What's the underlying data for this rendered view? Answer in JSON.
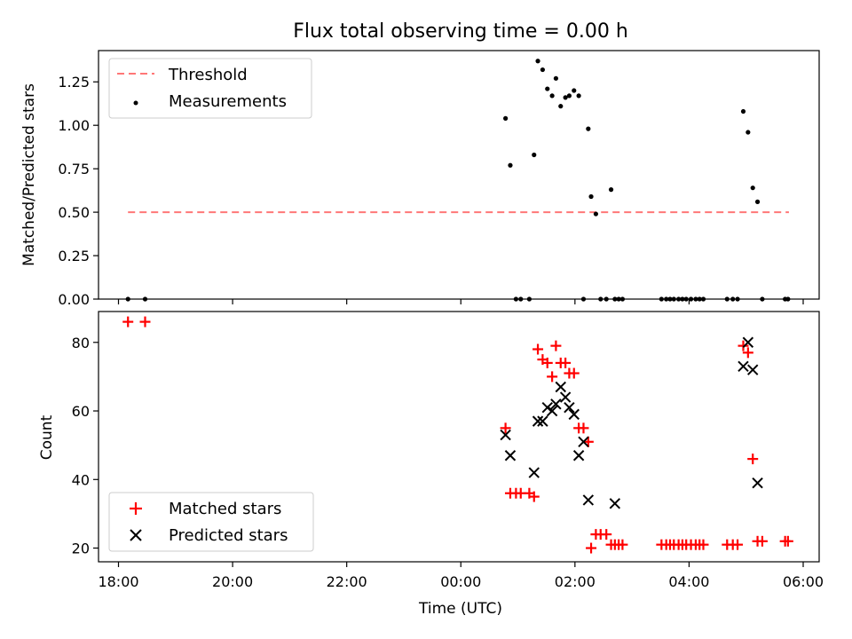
{
  "chart_data": [
    {
      "type": "scatter",
      "title": "Flux total observing time = 0.00 h",
      "xlabel": "",
      "ylabel": "Matched/Predicted stars",
      "ylim": [
        0.0,
        1.43
      ],
      "yticks": [
        "0.00",
        "0.25",
        "0.50",
        "0.75",
        "1.00",
        "1.25"
      ],
      "ytick_values": [
        0.0,
        0.25,
        0.5,
        0.75,
        1.0,
        1.25
      ],
      "xlim_hours": [
        17.65,
        30.28
      ],
      "xticks": [
        "18:00",
        "20:00",
        "22:00",
        "00:00",
        "02:00",
        "04:00",
        "06:00"
      ],
      "xtick_hours": [
        18,
        20,
        22,
        24,
        26,
        28,
        30
      ],
      "legend": {
        "position": "upper-left",
        "entries": [
          "Threshold",
          "Measurements"
        ]
      },
      "threshold": {
        "name": "Threshold",
        "value": 0.5,
        "x_range": [
          "18:10",
          "05:45"
        ],
        "color": "#ff7777"
      },
      "measurements": {
        "name": "Measurements",
        "color": "#000000",
        "x": [
          "18:10",
          "18:28",
          "00:47",
          "00:52",
          "00:58",
          "01:03",
          "01:12",
          "01:17",
          "01:21",
          "01:26",
          "01:31",
          "01:36",
          "01:40",
          "01:45",
          "01:50",
          "01:54",
          "01:59",
          "02:04",
          "02:09",
          "02:14",
          "02:17",
          "02:22",
          "02:27",
          "02:33",
          "02:38",
          "02:42",
          "02:46",
          "02:50",
          "03:31",
          "03:36",
          "03:40",
          "03:44",
          "03:49",
          "03:53",
          "03:57",
          "04:02",
          "04:07",
          "04:11",
          "04:15",
          "04:40",
          "04:46",
          "04:51",
          "04:57",
          "05:02",
          "05:07",
          "05:12",
          "05:17",
          "05:41",
          "05:44"
        ],
        "y": [
          0.0,
          0.0,
          1.04,
          0.77,
          0.0,
          0.0,
          0.0,
          0.83,
          1.37,
          1.32,
          1.21,
          1.17,
          1.27,
          1.11,
          1.16,
          1.17,
          1.2,
          1.17,
          0.0,
          0.98,
          0.59,
          0.49,
          0.0,
          0.0,
          0.63,
          0.0,
          0.0,
          0.0,
          0.0,
          0.0,
          0.0,
          0.0,
          0.0,
          0.0,
          0.0,
          0.0,
          0.0,
          0.0,
          0.0,
          0.0,
          0.0,
          0.0,
          1.08,
          0.96,
          0.64,
          0.56,
          0.0,
          0.0,
          0.0
        ]
      }
    },
    {
      "type": "scatter",
      "title": "",
      "xlabel": "Time (UTC)",
      "ylabel": "Count",
      "ylim": [
        16,
        89
      ],
      "yticks": [
        "20",
        "40",
        "60",
        "80"
      ],
      "ytick_values": [
        20,
        40,
        60,
        80
      ],
      "xlim_hours": [
        17.65,
        30.28
      ],
      "xticks": [
        "18:00",
        "20:00",
        "22:00",
        "00:00",
        "02:00",
        "04:00",
        "06:00"
      ],
      "xtick_hours": [
        18,
        20,
        22,
        24,
        26,
        28,
        30
      ],
      "legend": {
        "position": "lower-left",
        "entries": [
          "Matched stars",
          "Predicted stars"
        ]
      },
      "series": [
        {
          "name": "Matched stars",
          "marker": "+",
          "color": "#ff0000",
          "x": [
            "18:10",
            "18:28",
            "00:47",
            "00:52",
            "00:58",
            "01:03",
            "01:12",
            "01:17",
            "01:21",
            "01:26",
            "01:31",
            "01:36",
            "01:40",
            "01:45",
            "01:50",
            "01:54",
            "01:59",
            "02:04",
            "02:09",
            "02:14",
            "02:17",
            "02:22",
            "02:27",
            "02:33",
            "02:38",
            "02:42",
            "02:46",
            "02:50",
            "03:31",
            "03:36",
            "03:40",
            "03:44",
            "03:49",
            "03:53",
            "03:57",
            "04:02",
            "04:07",
            "04:11",
            "04:15",
            "04:40",
            "04:46",
            "04:51",
            "04:57",
            "05:02",
            "05:07",
            "05:12",
            "05:17",
            "05:41",
            "05:44"
          ],
          "y": [
            86,
            86,
            55,
            36,
            36,
            36,
            36,
            35,
            78,
            75,
            74,
            70,
            79,
            74,
            74,
            71,
            71,
            55,
            55,
            51,
            20,
            24,
            24,
            24,
            21,
            21,
            21,
            21,
            21,
            21,
            21,
            21,
            21,
            21,
            21,
            21,
            21,
            21,
            21,
            21,
            21,
            21,
            79,
            77,
            46,
            22,
            22,
            22,
            22
          ]
        },
        {
          "name": "Predicted stars",
          "marker": "x",
          "color": "#000000",
          "x": [
            "00:47",
            "00:52",
            "01:17",
            "01:21",
            "01:26",
            "01:31",
            "01:36",
            "01:40",
            "01:45",
            "01:50",
            "01:54",
            "01:59",
            "02:04",
            "02:09",
            "02:14",
            "02:42",
            "04:57",
            "05:02",
            "05:07",
            "05:12"
          ],
          "y": [
            53,
            47,
            42,
            57,
            57,
            61,
            60,
            62,
            67,
            64,
            61,
            59,
            47,
            51,
            34,
            33,
            73,
            80,
            72,
            39
          ]
        }
      ]
    }
  ]
}
